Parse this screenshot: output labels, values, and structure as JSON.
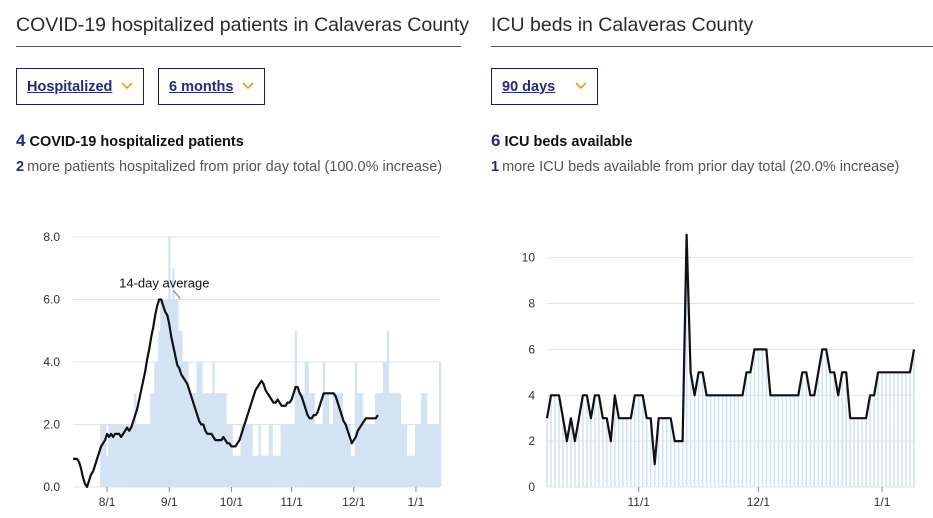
{
  "left": {
    "title": "COVID-19 hospitalized patients in Calaveras County",
    "dropdowns": [
      {
        "label": "Hospitalized"
      },
      {
        "label": "6 months"
      }
    ],
    "headline_value": "4",
    "headline_text": "COVID-19 hospitalized patients",
    "sub_value": "2",
    "sub_text": "more patients hospitalized from prior day total (100.0% increase)"
  },
  "right": {
    "title": "ICU beds in Calaveras County",
    "dropdowns": [
      {
        "label": "90 days"
      }
    ],
    "headline_value": "6",
    "headline_text": "ICU beds available",
    "sub_value": "1",
    "sub_text": "more ICU beds available from prior day total (20.0% increase)"
  },
  "colors": {
    "accent": "#252a7a",
    "chevron": "#f39c12",
    "bar": "#d4e3f3",
    "line": "#111111",
    "grid": "#e3e3e3"
  },
  "chart_data": [
    {
      "type": "bar",
      "x_unit": "days from 7/15",
      "xticks": [
        {
          "x": 17,
          "label": "8/1"
        },
        {
          "x": 48,
          "label": "9/1"
        },
        {
          "x": 79,
          "label": "10/1"
        },
        {
          "x": 109,
          "label": "11/1"
        },
        {
          "x": 140,
          "label": "12/1"
        },
        {
          "x": 171,
          "label": "1/1"
        }
      ],
      "yticks": [
        "0.0",
        "2.0",
        "4.0",
        "6.0",
        "8.0"
      ],
      "ylim": [
        0,
        8
      ],
      "grid": true,
      "annotation": {
        "text": "14-day average",
        "x": 54,
        "y": 6.0
      },
      "series": [
        {
          "kind": "bar",
          "values": [
            0,
            0,
            0,
            0,
            0,
            0,
            0,
            0,
            0,
            0,
            0,
            0,
            0,
            0,
            2,
            2,
            2,
            1,
            2,
            2,
            2,
            2,
            2,
            2,
            2,
            2,
            2,
            2,
            2,
            2,
            2,
            3,
            2,
            2,
            2,
            2,
            2,
            2,
            2,
            3,
            3,
            4,
            4,
            5,
            6,
            6,
            6,
            6,
            8,
            6,
            7,
            6,
            6,
            5,
            5,
            4,
            4,
            4,
            3,
            3,
            3,
            3,
            4,
            4,
            4,
            3,
            3,
            3,
            3,
            3,
            4,
            3,
            3,
            3,
            3,
            3,
            3,
            2,
            2,
            2,
            1,
            1,
            1,
            1,
            2,
            2,
            2,
            2,
            2,
            2,
            1,
            1,
            1,
            2,
            1,
            1,
            1,
            1,
            2,
            2,
            1,
            1,
            1,
            1,
            2,
            2,
            2,
            2,
            2,
            2,
            2,
            5,
            3,
            3,
            3,
            3,
            4,
            4,
            3,
            3,
            3,
            2,
            2,
            2,
            2,
            4,
            3,
            3,
            2,
            2,
            3,
            3,
            3,
            3,
            3,
            2,
            2,
            2,
            2,
            1,
            1,
            4,
            3,
            3,
            3,
            2,
            2,
            2,
            2,
            2,
            2,
            3,
            3,
            3,
            3,
            4,
            4,
            5,
            3,
            3,
            3,
            3,
            3,
            3,
            2,
            2,
            2,
            1,
            1,
            1,
            1,
            2,
            2,
            2,
            3,
            3,
            3,
            2,
            2,
            2,
            2,
            2,
            2,
            4
          ]
        },
        {
          "kind": "line",
          "name": "14-day average",
          "values": [
            0.9,
            0.9,
            0.9,
            0.8,
            0.6,
            0.3,
            0.1,
            0.0,
            0.2,
            0.4,
            0.5,
            0.7,
            0.9,
            1.1,
            1.3,
            1.4,
            1.5,
            1.7,
            1.6,
            1.7,
            1.6,
            1.7,
            1.7,
            1.7,
            1.6,
            1.7,
            1.8,
            1.9,
            1.8,
            1.9,
            2.1,
            2.3,
            2.5,
            2.8,
            3.1,
            3.4,
            3.7,
            4.1,
            4.4,
            4.8,
            5.1,
            5.5,
            5.8,
            6.0,
            6.0,
            5.8,
            5.6,
            5.5,
            5.2,
            4.8,
            4.5,
            4.2,
            3.9,
            3.8,
            3.6,
            3.5,
            3.4,
            3.3,
            3.1,
            2.9,
            2.7,
            2.5,
            2.3,
            2.1,
            2.0,
            2.0,
            1.8,
            1.7,
            1.7,
            1.7,
            1.6,
            1.5,
            1.5,
            1.5,
            1.5,
            1.6,
            1.5,
            1.4,
            1.4,
            1.3,
            1.3,
            1.3,
            1.4,
            1.5,
            1.7,
            1.9,
            2.1,
            2.3,
            2.5,
            2.7,
            2.9,
            3.1,
            3.2,
            3.3,
            3.4,
            3.3,
            3.1,
            3.0,
            2.9,
            2.8,
            2.7,
            2.7,
            2.8,
            2.7,
            2.6,
            2.6,
            2.6,
            2.7,
            2.7,
            2.8,
            3.0,
            3.2,
            3.2,
            3.0,
            2.9,
            2.7,
            2.5,
            2.3,
            2.2,
            2.2,
            2.3,
            2.3,
            2.4,
            2.6,
            2.8,
            3.0,
            3.0,
            3.0,
            3.0,
            3.0,
            3.0,
            2.9,
            2.7,
            2.5,
            2.3,
            2.1,
            2.0,
            1.8,
            1.6,
            1.4,
            1.5,
            1.6,
            1.8,
            1.9,
            2.0,
            2.1,
            2.2,
            2.2,
            2.2,
            2.2,
            2.2,
            2.2,
            2.3
          ]
        }
      ]
    },
    {
      "type": "line",
      "x_unit": "days from 10/9",
      "xticks": [
        {
          "x": 23,
          "label": "11/1"
        },
        {
          "x": 53,
          "label": "12/1"
        },
        {
          "x": 84,
          "label": "1/1"
        }
      ],
      "yticks": [
        "0",
        "2",
        "4",
        "6",
        "8",
        "10"
      ],
      "ylim": [
        0,
        10.9
      ],
      "grid": true,
      "series": [
        {
          "kind": "line+bar",
          "name": "ICU beds available",
          "values": [
            3,
            4,
            4,
            4,
            3,
            2,
            3,
            2,
            3,
            4,
            4,
            3,
            4,
            4,
            3,
            3,
            2,
            4,
            3,
            3,
            3,
            3,
            4,
            4,
            4,
            3,
            3,
            1,
            3,
            3,
            3,
            3,
            2,
            2,
            2,
            11,
            5,
            4,
            5,
            5,
            4,
            4,
            4,
            4,
            4,
            4,
            4,
            4,
            4,
            4,
            5,
            5,
            6,
            6,
            6,
            6,
            4,
            4,
            4,
            4,
            4,
            4,
            4,
            4,
            5,
            5,
            4,
            4,
            5,
            6,
            6,
            5,
            5,
            4,
            5,
            5,
            3,
            3,
            3,
            3,
            3,
            4,
            4,
            5,
            5,
            5,
            5,
            5,
            5,
            5,
            5,
            5,
            6
          ]
        }
      ]
    }
  ]
}
